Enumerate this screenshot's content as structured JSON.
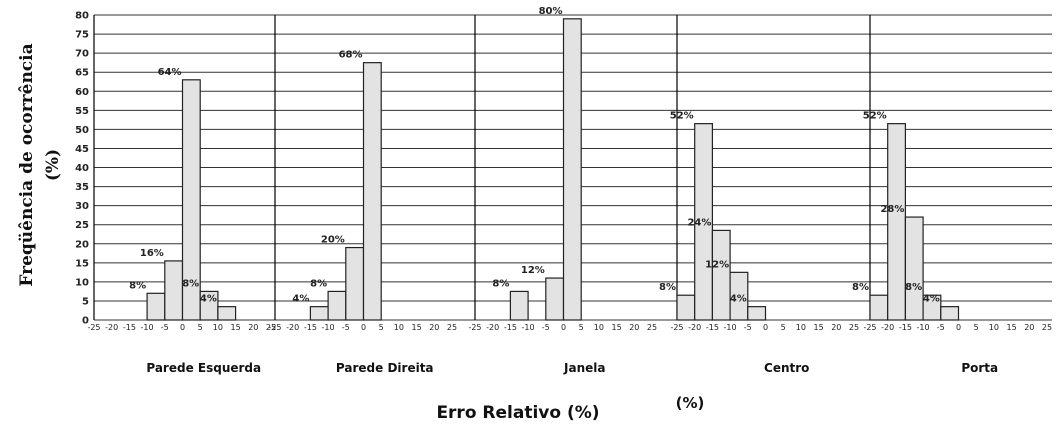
{
  "chart_data": {
    "type": "bar",
    "ylabel_line1": "Freqüência de ocorrência",
    "ylabel_line2": "(%)",
    "xlabel": "Erro Relativo (%)",
    "xunit": "(%)",
    "ylim": [
      0,
      80
    ],
    "yticks": [
      "0",
      "5",
      "10",
      "15",
      "20",
      "25",
      "30",
      "35",
      "40",
      "45",
      "50",
      "55",
      "60",
      "65",
      "70",
      "75",
      "80"
    ],
    "xticks": [
      "-25",
      "-20",
      "-15",
      "-10",
      "-5",
      "0",
      "5",
      "10",
      "15",
      "20",
      "25"
    ],
    "grid": true,
    "panels": [
      {
        "title": "Parede Esquerda",
        "bars": [
          {
            "range": [
              -10,
              -5
            ],
            "value": 7,
            "label": "8%"
          },
          {
            "range": [
              -5,
              0
            ],
            "value": 15.5,
            "label": "16%"
          },
          {
            "range": [
              0,
              5
            ],
            "value": 63,
            "label": "64%"
          },
          {
            "range": [
              5,
              10
            ],
            "value": 7.5,
            "label": "8%"
          },
          {
            "range": [
              10,
              15
            ],
            "value": 3.5,
            "label": "4%"
          }
        ]
      },
      {
        "title": "Parede Direita",
        "bars": [
          {
            "range": [
              -15,
              -10
            ],
            "value": 3.5,
            "label": "4%"
          },
          {
            "range": [
              -10,
              -5
            ],
            "value": 7.5,
            "label": "8%"
          },
          {
            "range": [
              -5,
              0
            ],
            "value": 19,
            "label": "20%"
          },
          {
            "range": [
              0,
              5
            ],
            "value": 67.5,
            "label": "68%"
          }
        ]
      },
      {
        "title": "Janela",
        "bars": [
          {
            "range": [
              -15,
              -10
            ],
            "value": 7.5,
            "label": "8%"
          },
          {
            "range": [
              -5,
              0
            ],
            "value": 11,
            "label": "12%"
          },
          {
            "range": [
              0,
              5
            ],
            "value": 79,
            "label": "80%"
          }
        ]
      },
      {
        "title": "Centro",
        "bars": [
          {
            "range": [
              -25,
              -20
            ],
            "value": 6.5,
            "label": "8%"
          },
          {
            "range": [
              -20,
              -15
            ],
            "value": 51.5,
            "label": "52%"
          },
          {
            "range": [
              -15,
              -10
            ],
            "value": 23.5,
            "label": "24%"
          },
          {
            "range": [
              -10,
              -5
            ],
            "value": 12.5,
            "label": "12%"
          },
          {
            "range": [
              -5,
              0
            ],
            "value": 3.5,
            "label": "4%"
          }
        ]
      },
      {
        "title": "Porta",
        "bars": [
          {
            "range": [
              -25,
              -20
            ],
            "value": 6.5,
            "label": "8%"
          },
          {
            "range": [
              -20,
              -15
            ],
            "value": 51.5,
            "label": "52%"
          },
          {
            "range": [
              -15,
              -10
            ],
            "value": 27,
            "label": "28%"
          },
          {
            "range": [
              -10,
              -5
            ],
            "value": 6.5,
            "label": "8%"
          },
          {
            "range": [
              -5,
              0
            ],
            "value": 3.5,
            "label": "4%"
          }
        ]
      }
    ]
  }
}
